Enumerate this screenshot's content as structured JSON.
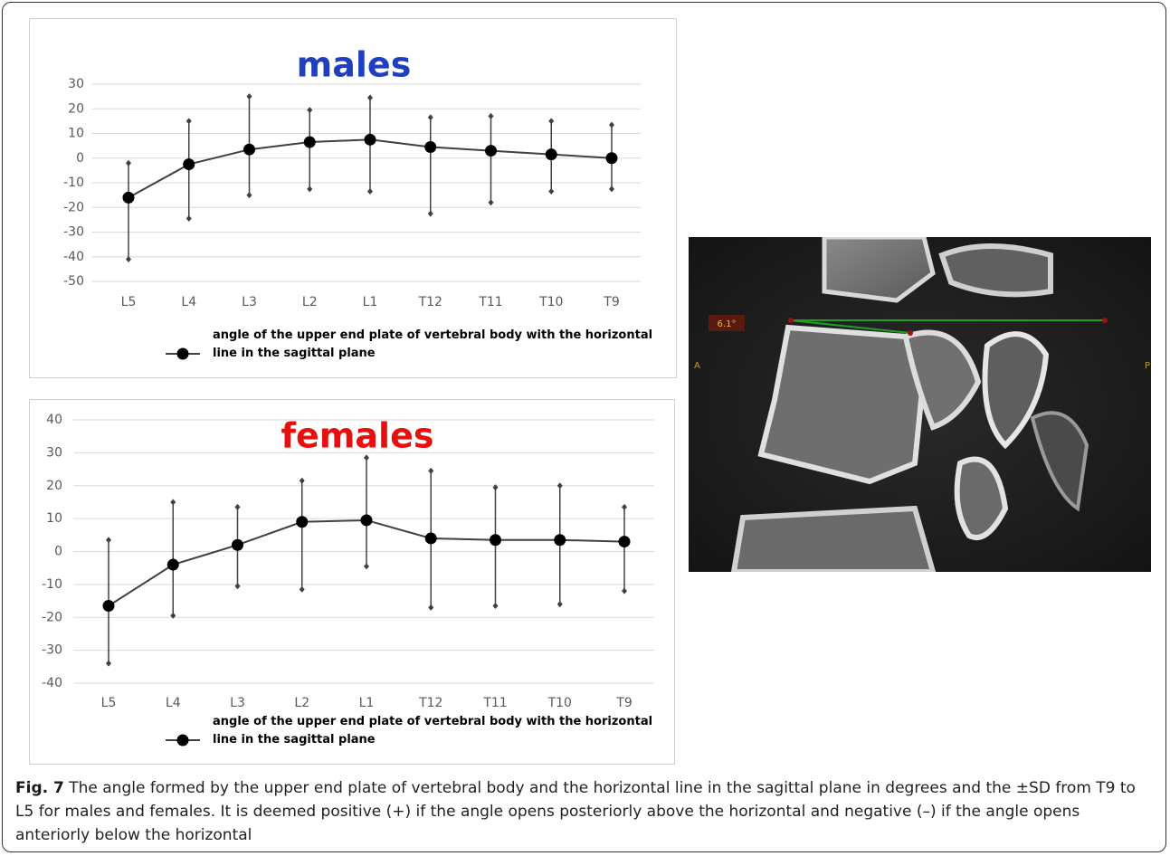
{
  "chart_data": [
    {
      "type": "line",
      "title": "males",
      "title_color": "#1f3fbf",
      "categories": [
        "L5",
        "L4",
        "L3",
        "L2",
        "L1",
        "T12",
        "T11",
        "T10",
        "T9"
      ],
      "series": [
        {
          "name": "angle of the upper end plate of vertebral body with the horizontal line in the sagittal plane",
          "color": "#404040",
          "values": [
            -16,
            -2.5,
            3.5,
            6.5,
            7.5,
            4.5,
            3,
            1.5,
            0
          ],
          "lower": [
            -41,
            -24.5,
            -15,
            -12.5,
            -13.5,
            -22.5,
            -18,
            -13.5,
            -12.5
          ],
          "upper": [
            -2,
            15,
            25,
            19.5,
            24.5,
            16.5,
            17,
            15,
            13.5
          ]
        }
      ],
      "ylim": [
        -50,
        30
      ],
      "yticks": [
        -50,
        -40,
        -30,
        -20,
        -10,
        0,
        10,
        20,
        30
      ],
      "grid": true
    },
    {
      "type": "line",
      "title": "females",
      "title_color": "#e8100e",
      "categories": [
        "L5",
        "L4",
        "L3",
        "L2",
        "L1",
        "T12",
        "T11",
        "T10",
        "T9"
      ],
      "series": [
        {
          "name": "angle of the upper end plate of vertebral body with the horizontal line in the sagittal plane",
          "color": "#404040",
          "values": [
            -16.5,
            -4,
            2,
            9,
            9.5,
            4,
            3.5,
            3.5,
            3
          ],
          "lower": [
            -34,
            -19.5,
            -10.5,
            -11.5,
            -4.5,
            -17,
            -16.5,
            -16,
            -12
          ],
          "upper": [
            3.5,
            15,
            13.5,
            21.5,
            28.5,
            24.5,
            19.5,
            20,
            13.5
          ]
        }
      ],
      "ylim": [
        -40,
        40
      ],
      "yticks": [
        -40,
        -30,
        -20,
        -10,
        0,
        10,
        20,
        30,
        40
      ],
      "grid": true
    }
  ],
  "image": {
    "labels": [
      "6.1°",
      "A",
      "P"
    ]
  },
  "caption": {
    "label": "Fig. 7",
    "text": "The angle formed by the upper end plate of vertebral body and the horizontal line in the sagittal plane in degrees and the ±SD from T9 to L5 for males and females. It is deemed positive (+) if the angle opens posteriorly above the horizontal and negative (–) if the angle opens anteriorly below the horizontal"
  }
}
